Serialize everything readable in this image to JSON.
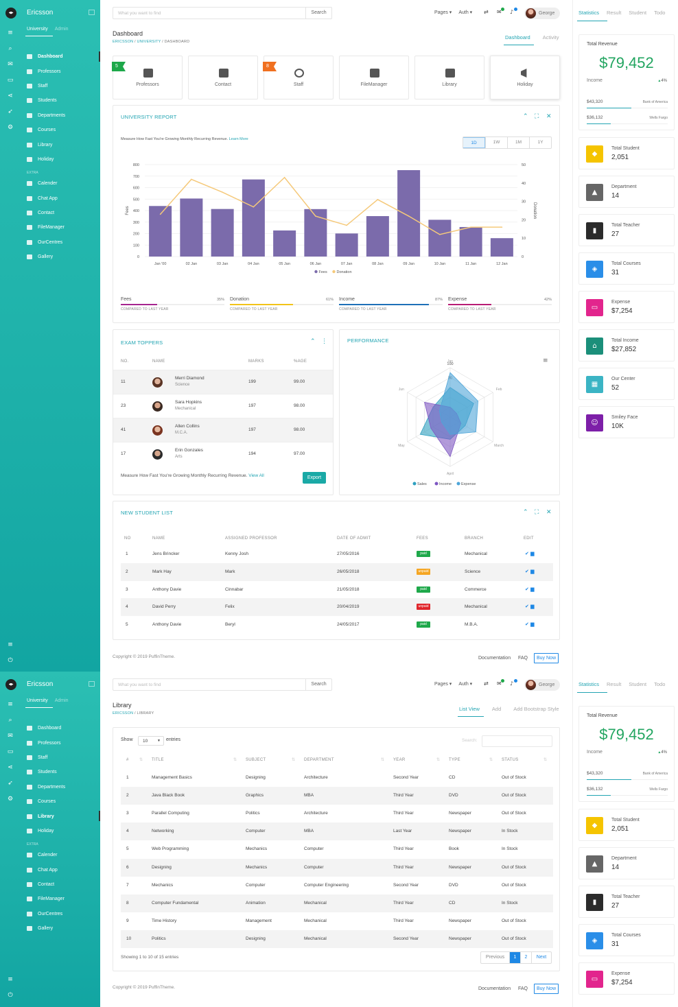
{
  "app": {
    "brand": "Ericsson",
    "side_tabs": [
      "University",
      "Admin"
    ],
    "extra_label": "EXTRA"
  },
  "search": {
    "placeholder": "What you want to find",
    "button": "Search"
  },
  "topnav": {
    "pages": "Pages ▾",
    "auth": "Auth ▾",
    "user": "George"
  },
  "rpanel": {
    "tabs": [
      "Statistics",
      "Result",
      "Student",
      "Todo"
    ],
    "revenue": {
      "title": "Total Revenue",
      "amount": "$79,452",
      "income_label": "Income",
      "change": "4%",
      "rows": [
        {
          "amount": "$43,320",
          "bank": "Bank of America"
        },
        {
          "amount": "$36,132",
          "bank": "Wells Fargo"
        }
      ]
    },
    "stats": [
      {
        "label": "Total Student",
        "value": "2,051",
        "color": "#f5c400",
        "icon": "student-icon"
      },
      {
        "label": "Department",
        "value": "14",
        "color": "#666666",
        "icon": "department-icon"
      },
      {
        "label": "Total Teacher",
        "value": "27",
        "color": "#2b2b2b",
        "icon": "teacher-icon"
      },
      {
        "label": "Total Courses",
        "value": "31",
        "color": "#2a8ee8",
        "icon": "tag-icon"
      },
      {
        "label": "Expense",
        "value": "$7,254",
        "color": "#e2258d",
        "icon": "card-icon"
      },
      {
        "label": "Total Income",
        "value": "$27,852",
        "color": "#1b8f7a",
        "icon": "bank-icon"
      },
      {
        "label": "Our Center",
        "value": "52",
        "color": "#3bb4c4",
        "icon": "map-icon"
      },
      {
        "label": "Smiley Face",
        "value": "10K",
        "color": "#7d1fa8",
        "icon": "smiley-icon"
      }
    ]
  },
  "dashboard": {
    "menu": [
      "Dashboard",
      "Professors",
      "Staff",
      "Students",
      "Departments",
      "Courses",
      "Library",
      "Holiday"
    ],
    "extra_menu": [
      "Calender",
      "Chat App",
      "Contact",
      "FileManager",
      "OurCentres",
      "Gallery"
    ],
    "title": "Dashboard",
    "crumb": {
      "a": "ERICSSON",
      "b": "UNIVERSITY",
      "c": "DASHBOARD"
    },
    "tabs": [
      "Dashboard",
      "Activity"
    ],
    "quick": [
      {
        "label": "Professors",
        "badge": "5",
        "badge_color": "#1ea84a",
        "icon": "professor-icon"
      },
      {
        "label": "Contact",
        "badge": "",
        "badge_color": "",
        "icon": "contact-icon"
      },
      {
        "label": "Staff",
        "badge": "8",
        "badge_color": "#f07020",
        "icon": "staff-icon"
      },
      {
        "label": "FileManager",
        "badge": "",
        "badge_color": "",
        "icon": "folder-icon"
      },
      {
        "label": "Library",
        "badge": "",
        "badge_color": "",
        "icon": "book-icon"
      },
      {
        "label": "Holiday",
        "badge": "",
        "badge_color": "",
        "icon": "megaphone-icon"
      }
    ],
    "report": {
      "title": "UNIVERSITY REPORT",
      "subtitle": "Measure How Fast You're Growing Monthly Recurring Revenue.",
      "learn_more": "Learn More",
      "ranges": [
        "1D",
        "1W",
        "1M",
        "1Y"
      ],
      "progress": [
        {
          "name": "Fees",
          "pct": "35%",
          "value": 35,
          "color": "#a6248f",
          "caption": "COMPARED TO LAST YEAR"
        },
        {
          "name": "Donation",
          "pct": "61%",
          "value": 61,
          "color": "#f2c318",
          "caption": "COMPARED TO LAST YEAR"
        },
        {
          "name": "Income",
          "pct": "87%",
          "value": 87,
          "color": "#1e6fb8",
          "caption": "COMPARED TO LAST YEAR"
        },
        {
          "name": "Expense",
          "pct": "42%",
          "value": 42,
          "color": "#b81c74",
          "caption": "COMPARED TO LAST YEAR"
        }
      ]
    },
    "toppers": {
      "title": "EXAM TOPPERS",
      "headers": [
        "NO.",
        "NAME",
        "MARKS",
        "%AGE"
      ],
      "rows": [
        {
          "no": "11",
          "name": "Merri Diamond",
          "dept": "Science",
          "marks": "199",
          "pct": "99.00"
        },
        {
          "no": "23",
          "name": "Sara Hopkins",
          "dept": "Mechanical",
          "marks": "197",
          "pct": "98.00"
        },
        {
          "no": "41",
          "name": "Allen Collins",
          "dept": "M.C.A.",
          "marks": "197",
          "pct": "98.00"
        },
        {
          "no": "17",
          "name": "Erin Gonzales",
          "dept": "Arts",
          "marks": "194",
          "pct": "97.00"
        }
      ],
      "footer": "Measure How Fast You're Growing Monthly Recurring Revenue.",
      "view_all": "View All",
      "export": "Export"
    },
    "performance": {
      "title": "PERFORMANCE"
    },
    "students": {
      "title": "NEW STUDENT LIST",
      "headers": [
        "NO",
        "NAME",
        "ASSIGNED PROFESSOR",
        "DATE OF ADMIT",
        "FEES",
        "BRANCH",
        "EDIT"
      ],
      "rows": [
        {
          "no": "1",
          "name": "Jens Brincker",
          "prof": "Kenny Josh",
          "date": "27/05/2016",
          "fees": "paid",
          "color": "#1ea84a",
          "branch": "Mechanical"
        },
        {
          "no": "2",
          "name": "Mark Hay",
          "prof": "Mark",
          "date": "26/05/2018",
          "fees": "unpaid",
          "color": "#f5a623",
          "branch": "Science"
        },
        {
          "no": "3",
          "name": "Anthony Davie",
          "prof": "Cinnabar",
          "date": "21/05/2018",
          "fees": "paid",
          "color": "#1ea84a",
          "branch": "Commerce"
        },
        {
          "no": "4",
          "name": "David Perry",
          "prof": "Felix",
          "date": "20/04/2019",
          "fees": "unpaid",
          "color": "#e0252b",
          "branch": "Mechanical"
        },
        {
          "no": "5",
          "name": "Anthony Davie",
          "prof": "Beryl",
          "date": "24/05/2017",
          "fees": "paid",
          "color": "#1ea84a",
          "branch": "M.B.A."
        }
      ]
    },
    "footer": {
      "copyright": "Copyright © 2019 PuffinTheme.",
      "links": [
        "Documentation",
        "FAQ"
      ],
      "buy": "Buy Now"
    }
  },
  "library": {
    "title": "Library",
    "crumb": {
      "a": "ERICSSON",
      "b": "LIBRARY"
    },
    "tabs": [
      "List View",
      "Add",
      "Add Bootstrap Style"
    ],
    "show": "Show",
    "entries_val": "10",
    "entries": "entries",
    "search_label": "Search:",
    "headers": [
      "#",
      "TITLE",
      "SUBJECT",
      "DEPARTMENT",
      "YEAR",
      "TYPE",
      "STATUS"
    ],
    "rows": [
      {
        "n": "1",
        "title": "Management Basics",
        "subject": "Designing",
        "dept": "Architecture",
        "year": "Second Year",
        "type": "CD",
        "status": "Out of Stock"
      },
      {
        "n": "2",
        "title": "Java Black Book",
        "subject": "Graphics",
        "dept": "MBA",
        "year": "Third Year",
        "type": "DVD",
        "status": "Out of Stock"
      },
      {
        "n": "3",
        "title": "Parallel Computing",
        "subject": "Politics",
        "dept": "Architecture",
        "year": "Third Year",
        "type": "Newspaper",
        "status": "Out of Stock"
      },
      {
        "n": "4",
        "title": "Networking",
        "subject": "Computer",
        "dept": "MBA",
        "year": "Last Year",
        "type": "Newspaper",
        "status": "In Stock"
      },
      {
        "n": "5",
        "title": "Web Programming",
        "subject": "Mechanics",
        "dept": "Computer",
        "year": "Third Year",
        "type": "Book",
        "status": "In Stock"
      },
      {
        "n": "6",
        "title": "Designing",
        "subject": "Mechanics",
        "dept": "Computer",
        "year": "Third Year",
        "type": "Newspaper",
        "status": "Out of Stock"
      },
      {
        "n": "7",
        "title": "Mechanics",
        "subject": "Computer",
        "dept": "Computer Engineering",
        "year": "Second Year",
        "type": "DVD",
        "status": "Out of Stock"
      },
      {
        "n": "8",
        "title": "Computer Fundamental",
        "subject": "Animation",
        "dept": "Mechanical",
        "year": "Third Year",
        "type": "CD",
        "status": "In Stock"
      },
      {
        "n": "9",
        "title": "Time History",
        "subject": "Management",
        "dept": "Mechanical",
        "year": "Third Year",
        "type": "Newspaper",
        "status": "Out of Stock"
      },
      {
        "n": "10",
        "title": "Politics",
        "subject": "Designing",
        "dept": "Mechanical",
        "year": "Second Year",
        "type": "Newspaper",
        "status": "Out of Stock"
      }
    ],
    "info": "Showing 1 to 10 of 15 entries",
    "pager": [
      "Previous",
      "1",
      "2",
      "Next"
    ]
  },
  "chart_data": [
    {
      "type": "bar",
      "categories": [
        "Jan '00",
        "02 Jan",
        "03 Jan",
        "04 Jan",
        "05 Jan",
        "06 Jan",
        "07 Jan",
        "08 Jan",
        "09 Jan",
        "10 Jan",
        "11 Jan",
        "12 Jan"
      ],
      "series": [
        {
          "name": "Fees",
          "type": "bar",
          "axis": "left",
          "color": "#7b6bab",
          "values": [
            440,
            505,
            414,
            671,
            227,
            413,
            201,
            352,
            752,
            320,
            257,
            160
          ]
        },
        {
          "name": "Donation",
          "type": "line",
          "axis": "right",
          "color": "#f5c97a",
          "values": [
            23,
            42,
            35,
            27,
            43,
            22,
            17,
            31,
            22,
            12,
            16,
            16
          ]
        }
      ],
      "ylabel": "Fees",
      "y2label": "Donation",
      "ylim": [
        0,
        800
      ],
      "y2lim": [
        0,
        50
      ],
      "yticks": [
        0,
        100,
        200,
        300,
        400,
        500,
        600,
        700,
        800
      ],
      "y2ticks": [
        0,
        10,
        20,
        30,
        40,
        50
      ],
      "grid": true,
      "legend": "bottom"
    },
    {
      "type": "radar",
      "axes": [
        "Jan",
        "Feb",
        "March",
        "April",
        "May",
        "Jun"
      ],
      "ticks": [
        80,
        100
      ],
      "series": [
        {
          "name": "Sales",
          "color": "#2ea0c0",
          "values": [
            60,
            55,
            35,
            45,
            70,
            40
          ]
        },
        {
          "name": "Income",
          "color": "#7e57c2",
          "values": [
            20,
            15,
            25,
            80,
            45,
            60
          ]
        },
        {
          "name": "Expense",
          "color": "#4ea5d9",
          "values": [
            90,
            65,
            60,
            35,
            20,
            25
          ]
        }
      ],
      "legend": "bottom"
    }
  ]
}
